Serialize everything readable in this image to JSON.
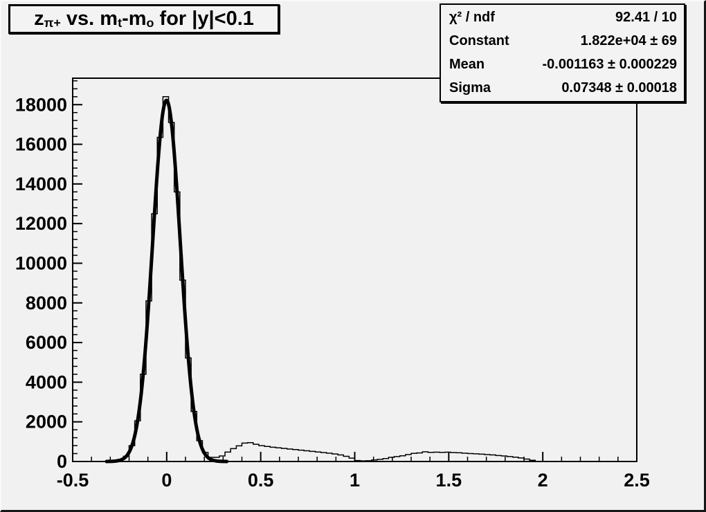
{
  "title": {
    "segments": [
      {
        "t": "z"
      },
      {
        "t": "π+",
        "sub": true
      },
      {
        "t": " vs. m"
      },
      {
        "t": "t",
        "sub": true
      },
      {
        "t": "-m"
      },
      {
        "t": "o",
        "sub": true
      },
      {
        "t": " for |y|<0.1"
      }
    ]
  },
  "stats": {
    "rows": [
      {
        "label": "χ² / ndf",
        "value": "92.41 / 10"
      },
      {
        "label": "Constant",
        "value": "1.822e+04 ± 69"
      },
      {
        "label": "Mean",
        "value": "-0.001163 ± 0.000229"
      },
      {
        "label": "Sigma",
        "value": "0.07348 ± 0.00018"
      }
    ]
  },
  "colors": {
    "canvas_bg": "#f1f1f1",
    "line": "#000000",
    "text": "#000000"
  },
  "chart_data": {
    "type": "bar",
    "subtype": "step-histogram-with-gaussian-fit",
    "title": "z_{π+} vs. m_t-m_o for |y|<0.1",
    "xlabel": "",
    "ylabel": "",
    "x_min": -0.5,
    "x_max": 2.5,
    "y_min": 0,
    "y_max": 19335,
    "x_ticks": [
      -0.5,
      0,
      0.5,
      1,
      1.5,
      2,
      2.5
    ],
    "x_tick_labels": [
      "-0.5",
      "0",
      "0.5",
      "1",
      "1.5",
      "2",
      "2.5"
    ],
    "x_minor_step": 0.1,
    "y_ticks": [
      0,
      2000,
      4000,
      6000,
      8000,
      10000,
      12000,
      14000,
      16000,
      18000
    ],
    "y_tick_labels": [
      "0",
      "2000",
      "4000",
      "6000",
      "8000",
      "10000",
      "12000",
      "14000",
      "16000",
      "18000"
    ],
    "y_minor_step": 400,
    "grid": false,
    "legend": false,
    "bin_start": -0.5,
    "bin_width": 0.03,
    "bins": [
      0,
      0,
      0,
      0,
      0,
      0,
      0,
      60,
      110,
      260,
      800,
      2050,
      4400,
      8100,
      12500,
      16350,
      18400,
      17100,
      13600,
      9150,
      5220,
      2520,
      1050,
      460,
      210,
      210,
      280,
      475,
      650,
      790,
      930,
      950,
      870,
      800,
      760,
      720,
      690,
      660,
      630,
      600,
      570,
      540,
      510,
      480,
      450,
      420,
      380,
      330,
      260,
      170,
      50,
      30,
      40,
      80,
      110,
      150,
      210,
      250,
      290,
      350,
      410,
      430,
      490,
      460,
      470,
      460,
      470,
      450,
      440,
      420,
      400,
      390,
      370,
      350,
      330,
      300,
      280,
      250,
      220,
      180,
      120,
      60,
      0,
      0,
      0,
      0,
      0,
      0,
      0,
      0,
      0,
      0,
      0,
      0,
      0,
      0,
      0,
      0,
      0,
      0
    ],
    "fit": {
      "type": "gaussian",
      "constant": 18220,
      "mean": -0.001163,
      "sigma": 0.07348,
      "draw_range": [
        -0.32,
        0.32
      ]
    }
  }
}
